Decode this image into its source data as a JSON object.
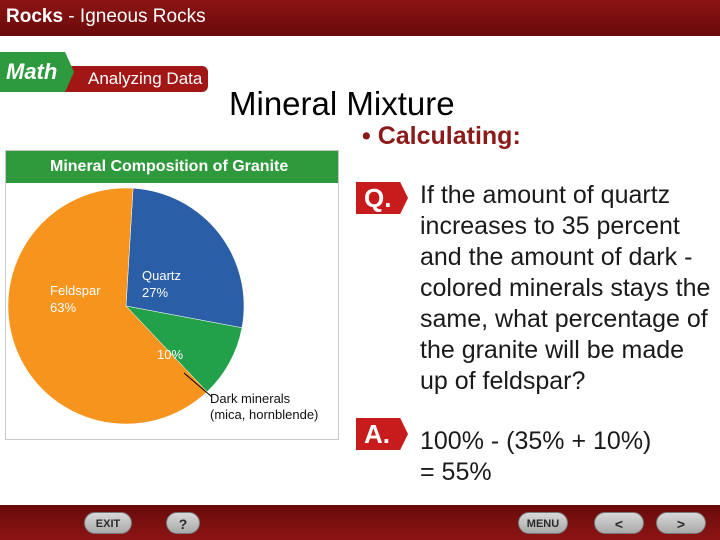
{
  "header": {
    "title_bold": "Rocks",
    "title_rest": " - Igneous Rocks"
  },
  "banner": {
    "math": "Math",
    "analyzing": "Analyzing Data"
  },
  "slide": {
    "title": "Mineral Mixture",
    "bullet": "• Calculating:"
  },
  "chart_data": {
    "type": "pie",
    "title": "Mineral Composition of Granite",
    "slices": [
      {
        "name": "Quartz",
        "label": "Quartz",
        "value_label": "27%",
        "value": 27,
        "color": "#2a5ea6"
      },
      {
        "name": "Dark minerals",
        "label": "Dark minerals",
        "sub_label": "(mica, hornblende)",
        "value_label": "10%",
        "value": 10,
        "color": "#22a04a"
      },
      {
        "name": "Feldspar",
        "label": "Feldspar",
        "value_label": "63%",
        "value": 63,
        "color": "#f7941e"
      }
    ]
  },
  "qa": {
    "q_label": "Q.",
    "question": "If the amount of quartz increases to 35 percent and the amount of dark -colored minerals stays the same, what percentage of the granite will be made up of feldspar?",
    "a_label": "A.",
    "answer_line1": "100% - (35% + 10%)",
    "answer_line2": "= 55%"
  },
  "nav": {
    "exit": "EXIT",
    "help": "?",
    "menu": "MENU",
    "prev": "<",
    "next": ">"
  },
  "colors": {
    "header_red": "#8c1414",
    "math_green": "#2e9a3e",
    "accent_red": "#c81b1b"
  }
}
